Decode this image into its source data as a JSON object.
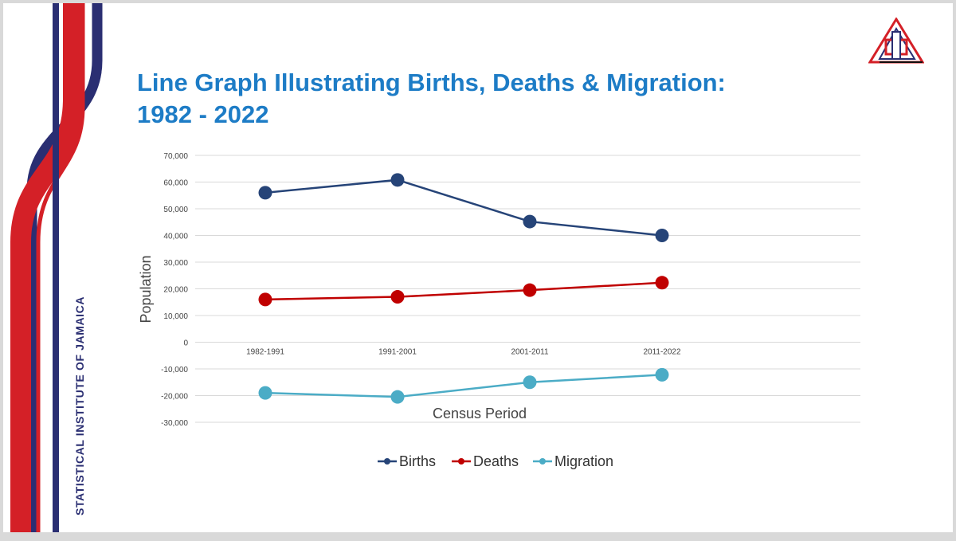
{
  "slide": {
    "org_name": "STATISTICAL INSTITUTE OF JAMAICA",
    "title_line1": "Line Graph Illustrating Births, Deaths & Migration:",
    "title_line2": "1982 - 2022",
    "colors": {
      "title": "#1d7cc6",
      "stripe_blue": "#2a2e72",
      "stripe_red": "#d42027",
      "gridline": "#d9d9d9"
    }
  },
  "chart_data": {
    "type": "line",
    "title": "Line Graph Illustrating Births, Deaths & Migration: 1982 - 2022",
    "categories": [
      "1982-1991",
      "1991-2001",
      "2001-2011",
      "2011-2022"
    ],
    "xlabel": "Census Period",
    "ylabel": "Population",
    "ylim": [
      -30000,
      70000
    ],
    "ytick_step": 10000,
    "ytick_labels": [
      "70,000",
      "60,000",
      "50,000",
      "40,000",
      "30,000",
      "20,000",
      "10,000",
      "0",
      "-10,000",
      "-20,000",
      "-30,000"
    ],
    "grid": true,
    "legend_position": "bottom",
    "series": [
      {
        "name": "Births",
        "color": "#264478",
        "values": [
          56000,
          60800,
          45200,
          40000
        ]
      },
      {
        "name": "Deaths",
        "color": "#c00000",
        "values": [
          16000,
          17000,
          19500,
          22300
        ]
      },
      {
        "name": "Migration",
        "color": "#4bacc6",
        "values": [
          -19000,
          -20500,
          -15000,
          -12200
        ]
      }
    ]
  }
}
